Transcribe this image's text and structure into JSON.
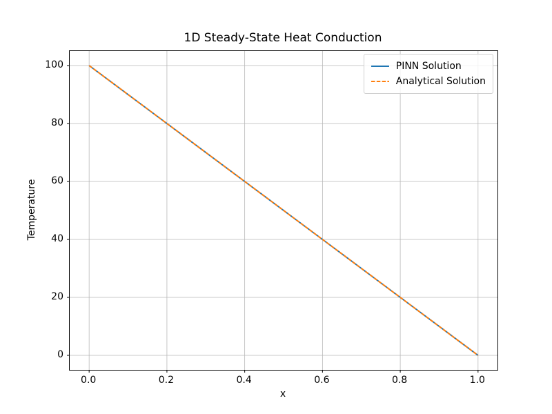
{
  "figure": {
    "background": "#ffffff"
  },
  "chart_data": {
    "type": "line",
    "title": "1D Steady-State Heat Conduction",
    "xlabel": "x",
    "ylabel": "Temperature",
    "xlim": [
      -0.05,
      1.05
    ],
    "ylim": [
      -5,
      105
    ],
    "xticks": [
      0.0,
      0.2,
      0.4,
      0.6,
      0.8,
      1.0
    ],
    "xtick_labels": [
      "0.0",
      "0.2",
      "0.4",
      "0.6",
      "0.8",
      "1.0"
    ],
    "yticks": [
      0,
      20,
      40,
      60,
      80,
      100
    ],
    "ytick_labels": [
      "0",
      "20",
      "40",
      "60",
      "80",
      "100"
    ],
    "grid": true,
    "grid_color": "#b7b7b7",
    "spine_color": "#000000",
    "legend_position": "upper right",
    "x": [
      0.0,
      0.2,
      0.4,
      0.6,
      0.8,
      1.0
    ],
    "series": [
      {
        "name": "PINN Solution",
        "values": [
          100,
          80,
          60,
          40,
          20,
          0
        ],
        "color": "#1f77b4",
        "style": "solid"
      },
      {
        "name": "Analytical Solution",
        "values": [
          100,
          80,
          60,
          40,
          20,
          0
        ],
        "color": "#ff7f0e",
        "style": "dashed"
      }
    ]
  }
}
